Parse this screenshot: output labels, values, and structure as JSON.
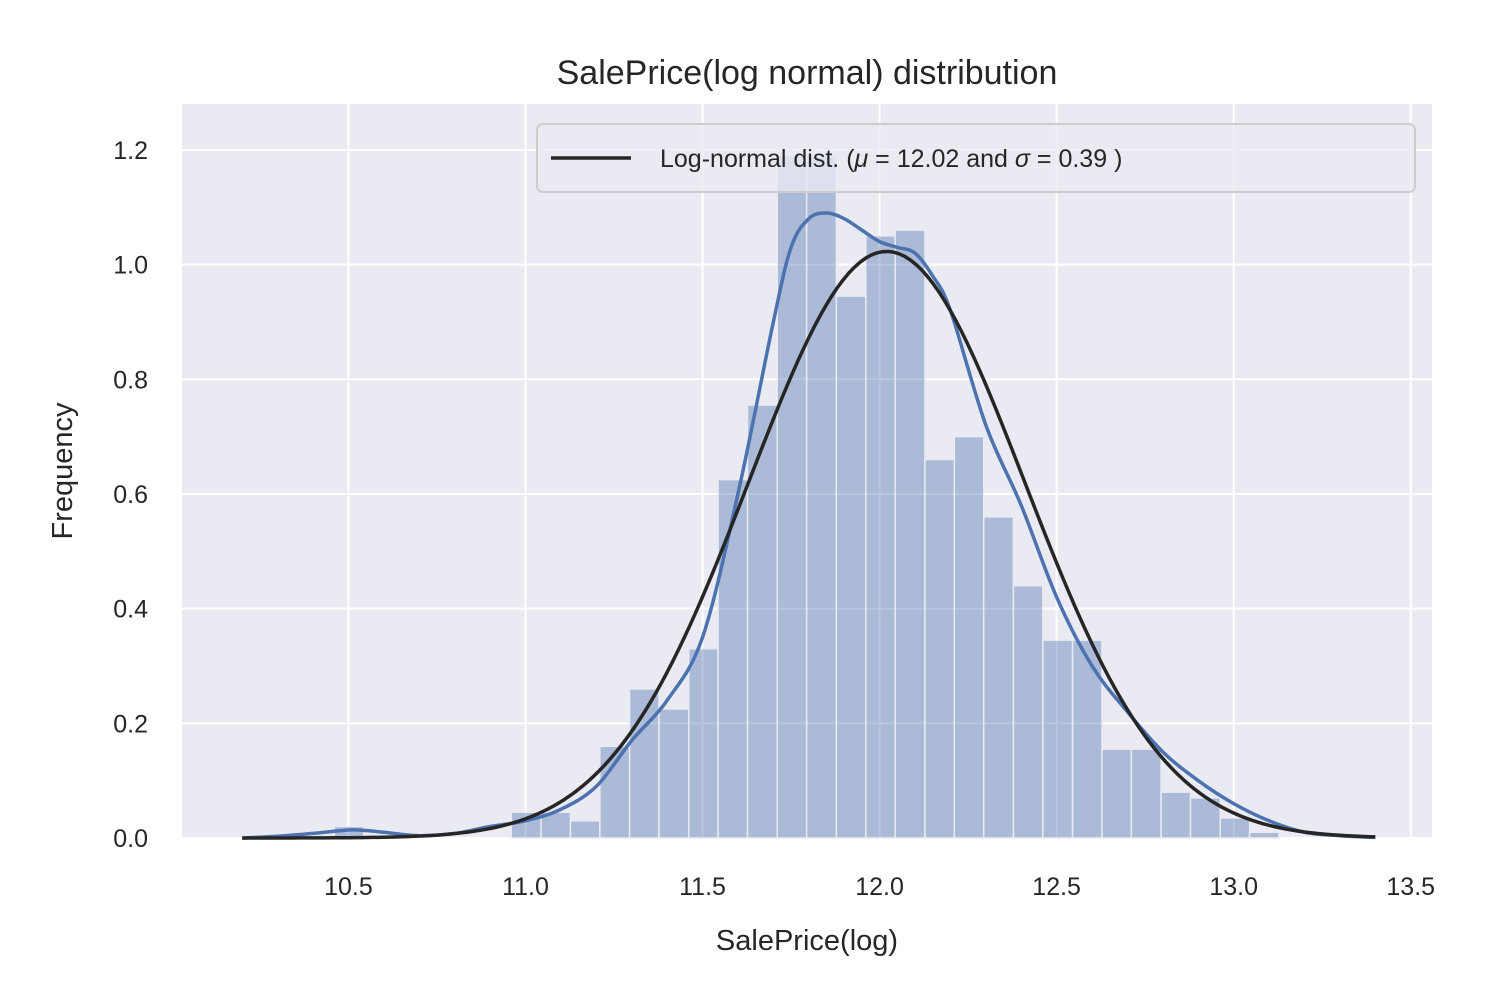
{
  "chart_data": {
    "type": "bar",
    "title": "SalePrice(log normal) distribution",
    "xlabel": "SalePrice(log)",
    "ylabel": "Frequency",
    "xlim": [
      10.03,
      13.56
    ],
    "ylim": [
      0.0,
      1.28
    ],
    "x_ticks": [
      "10.5",
      "11.0",
      "11.5",
      "12.0",
      "12.5",
      "13.0",
      "13.5"
    ],
    "y_ticks": [
      "0.0",
      "0.2",
      "0.4",
      "0.6",
      "0.8",
      "1.0",
      "1.2"
    ],
    "grid": true,
    "background": "#eaeaf2",
    "legend": {
      "placement": "upper right",
      "label_parts": [
        "Log-normal dist. (",
        "μ",
        " =  12.02 and ",
        "σ",
        " =  0.39 )"
      ]
    },
    "histogram": {
      "color": "#4c72b0",
      "bin_edges": [
        10.46,
        10.543,
        10.627,
        10.71,
        10.794,
        10.877,
        10.96,
        11.044,
        11.127,
        11.21,
        11.294,
        11.377,
        11.461,
        11.544,
        11.627,
        11.711,
        11.794,
        11.878,
        11.961,
        12.044,
        12.128,
        12.211,
        12.294,
        12.378,
        12.461,
        12.545,
        12.628,
        12.711,
        12.795,
        12.878,
        12.962,
        13.045,
        13.128
      ],
      "values": [
        0.02,
        0.0,
        0.0,
        0.0,
        0.0,
        0.0,
        0.045,
        0.045,
        0.03,
        0.16,
        0.26,
        0.225,
        0.33,
        0.625,
        0.755,
        1.19,
        1.19,
        0.945,
        1.05,
        1.06,
        0.66,
        0.7,
        0.56,
        0.44,
        0.345,
        0.345,
        0.155,
        0.155,
        0.08,
        0.07,
        0.035,
        0.01
      ]
    },
    "series": [
      {
        "type": "line",
        "color": "#4c72b0",
        "x": [
          10.2,
          10.3,
          10.4,
          10.5,
          10.55,
          10.6,
          10.7,
          10.8,
          10.9,
          11.0,
          11.1,
          11.2,
          11.3,
          11.4,
          11.5,
          11.6,
          11.7,
          11.75,
          11.8,
          11.85,
          11.9,
          11.95,
          12.0,
          12.05,
          12.1,
          12.15,
          12.2,
          12.3,
          12.4,
          12.5,
          12.6,
          12.7,
          12.8,
          12.9,
          13.0,
          13.1,
          13.2,
          13.3,
          13.4
        ],
        "y": [
          0.0,
          0.003,
          0.008,
          0.014,
          0.013,
          0.01,
          0.004,
          0.008,
          0.02,
          0.03,
          0.05,
          0.09,
          0.17,
          0.24,
          0.35,
          0.6,
          0.9,
          1.03,
          1.08,
          1.09,
          1.08,
          1.06,
          1.04,
          1.03,
          1.02,
          0.98,
          0.92,
          0.72,
          0.58,
          0.42,
          0.3,
          0.22,
          0.15,
          0.1,
          0.06,
          0.03,
          0.01,
          0.004,
          0.001
        ]
      },
      {
        "name": "Log-normal dist. (μ =  12.02 and σ =  0.39 )",
        "type": "line",
        "color": "#262626",
        "mu": 12.02,
        "sigma": 0.39,
        "x_range": [
          10.2,
          13.4
        ]
      }
    ]
  }
}
